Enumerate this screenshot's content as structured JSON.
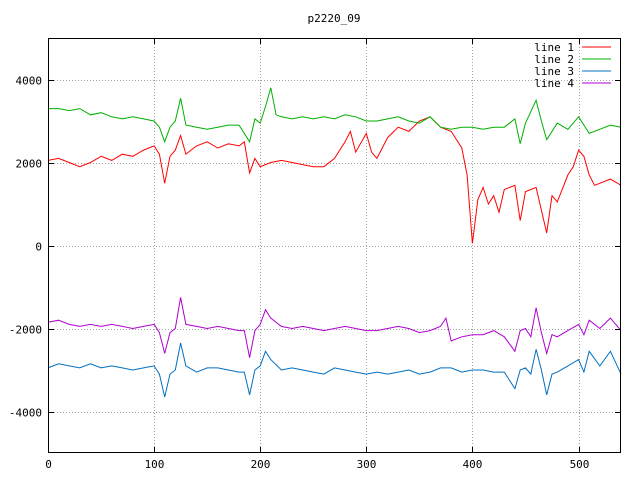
{
  "chart_data": {
    "type": "line",
    "title": "p2220_09",
    "xlabel": "",
    "ylabel": "",
    "xlim": [
      0,
      540
    ],
    "ylim": [
      -5000,
      5000
    ],
    "grid": true,
    "legend_position": "top-right",
    "x_ticks": [
      0,
      100,
      200,
      300,
      400,
      500
    ],
    "y_ticks": [
      -4000,
      -2000,
      0,
      2000,
      4000
    ],
    "x_tick_labels": [
      "0",
      "100",
      "200",
      "300",
      "400",
      "500"
    ],
    "y_tick_labels": [
      "-4000",
      "-2000",
      "0",
      "2000",
      "4000"
    ],
    "series": [
      {
        "name": "line 1",
        "color": "#ff0000",
        "points": [
          [
            0,
            2050
          ],
          [
            10,
            2100
          ],
          [
            20,
            2000
          ],
          [
            30,
            1900
          ],
          [
            40,
            2000
          ],
          [
            50,
            2150
          ],
          [
            60,
            2050
          ],
          [
            70,
            2200
          ],
          [
            80,
            2150
          ],
          [
            90,
            2300
          ],
          [
            100,
            2400
          ],
          [
            105,
            2200
          ],
          [
            110,
            1500
          ],
          [
            115,
            2150
          ],
          [
            120,
            2300
          ],
          [
            125,
            2650
          ],
          [
            130,
            2200
          ],
          [
            140,
            2400
          ],
          [
            150,
            2500
          ],
          [
            160,
            2350
          ],
          [
            170,
            2450
          ],
          [
            180,
            2400
          ],
          [
            185,
            2500
          ],
          [
            190,
            1750
          ],
          [
            195,
            2100
          ],
          [
            200,
            1900
          ],
          [
            210,
            2000
          ],
          [
            220,
            2050
          ],
          [
            230,
            2000
          ],
          [
            240,
            1950
          ],
          [
            250,
            1900
          ],
          [
            260,
            1900
          ],
          [
            270,
            2100
          ],
          [
            280,
            2500
          ],
          [
            285,
            2750
          ],
          [
            290,
            2250
          ],
          [
            300,
            2700
          ],
          [
            305,
            2250
          ],
          [
            310,
            2100
          ],
          [
            320,
            2600
          ],
          [
            330,
            2850
          ],
          [
            340,
            2750
          ],
          [
            350,
            3000
          ],
          [
            360,
            3100
          ],
          [
            370,
            2850
          ],
          [
            380,
            2750
          ],
          [
            390,
            2350
          ],
          [
            395,
            1700
          ],
          [
            400,
            50
          ],
          [
            405,
            1100
          ],
          [
            410,
            1400
          ],
          [
            415,
            1000
          ],
          [
            420,
            1200
          ],
          [
            425,
            800
          ],
          [
            430,
            1350
          ],
          [
            440,
            1450
          ],
          [
            445,
            600
          ],
          [
            450,
            1300
          ],
          [
            460,
            1400
          ],
          [
            470,
            300
          ],
          [
            475,
            1200
          ],
          [
            480,
            1050
          ],
          [
            490,
            1700
          ],
          [
            495,
            1900
          ],
          [
            500,
            2300
          ],
          [
            505,
            2150
          ],
          [
            510,
            1700
          ],
          [
            515,
            1450
          ],
          [
            520,
            1500
          ],
          [
            530,
            1600
          ],
          [
            540,
            1450
          ]
        ]
      },
      {
        "name": "line 2",
        "color": "#00b000",
        "points": [
          [
            0,
            3300
          ],
          [
            10,
            3300
          ],
          [
            20,
            3250
          ],
          [
            30,
            3300
          ],
          [
            40,
            3150
          ],
          [
            50,
            3200
          ],
          [
            60,
            3100
          ],
          [
            70,
            3050
          ],
          [
            80,
            3100
          ],
          [
            90,
            3050
          ],
          [
            100,
            3000
          ],
          [
            105,
            2850
          ],
          [
            110,
            2500
          ],
          [
            115,
            2850
          ],
          [
            120,
            3000
          ],
          [
            125,
            3550
          ],
          [
            130,
            2900
          ],
          [
            140,
            2850
          ],
          [
            150,
            2800
          ],
          [
            160,
            2850
          ],
          [
            170,
            2900
          ],
          [
            180,
            2900
          ],
          [
            190,
            2500
          ],
          [
            195,
            3050
          ],
          [
            200,
            2950
          ],
          [
            205,
            3350
          ],
          [
            210,
            3800
          ],
          [
            215,
            3150
          ],
          [
            220,
            3100
          ],
          [
            230,
            3050
          ],
          [
            240,
            3100
          ],
          [
            250,
            3050
          ],
          [
            260,
            3100
          ],
          [
            270,
            3050
          ],
          [
            280,
            3150
          ],
          [
            290,
            3100
          ],
          [
            300,
            3000
          ],
          [
            310,
            3000
          ],
          [
            320,
            3050
          ],
          [
            330,
            3100
          ],
          [
            340,
            3000
          ],
          [
            350,
            2950
          ],
          [
            360,
            3100
          ],
          [
            370,
            2850
          ],
          [
            380,
            2800
          ],
          [
            390,
            2850
          ],
          [
            400,
            2850
          ],
          [
            410,
            2800
          ],
          [
            420,
            2850
          ],
          [
            430,
            2850
          ],
          [
            440,
            3050
          ],
          [
            445,
            2450
          ],
          [
            450,
            2950
          ],
          [
            460,
            3500
          ],
          [
            465,
            3000
          ],
          [
            470,
            2550
          ],
          [
            480,
            2950
          ],
          [
            490,
            2800
          ],
          [
            500,
            3100
          ],
          [
            510,
            2700
          ],
          [
            520,
            2800
          ],
          [
            530,
            2900
          ],
          [
            540,
            2850
          ]
        ]
      },
      {
        "name": "line 3",
        "color": "#0070c0",
        "points": [
          [
            0,
            -2950
          ],
          [
            10,
            -2850
          ],
          [
            20,
            -2900
          ],
          [
            30,
            -2950
          ],
          [
            40,
            -2850
          ],
          [
            50,
            -2950
          ],
          [
            60,
            -2900
          ],
          [
            70,
            -2950
          ],
          [
            80,
            -3000
          ],
          [
            90,
            -2950
          ],
          [
            100,
            -2900
          ],
          [
            105,
            -3100
          ],
          [
            110,
            -3650
          ],
          [
            115,
            -3100
          ],
          [
            120,
            -3000
          ],
          [
            125,
            -2350
          ],
          [
            130,
            -2900
          ],
          [
            140,
            -3050
          ],
          [
            150,
            -2950
          ],
          [
            160,
            -2950
          ],
          [
            170,
            -3000
          ],
          [
            180,
            -3050
          ],
          [
            185,
            -3050
          ],
          [
            190,
            -3600
          ],
          [
            195,
            -3000
          ],
          [
            200,
            -2900
          ],
          [
            205,
            -2550
          ],
          [
            210,
            -2750
          ],
          [
            220,
            -3000
          ],
          [
            230,
            -2950
          ],
          [
            240,
            -3000
          ],
          [
            250,
            -3050
          ],
          [
            260,
            -3100
          ],
          [
            270,
            -2950
          ],
          [
            280,
            -3000
          ],
          [
            290,
            -3050
          ],
          [
            300,
            -3100
          ],
          [
            310,
            -3050
          ],
          [
            320,
            -3100
          ],
          [
            330,
            -3050
          ],
          [
            340,
            -3000
          ],
          [
            350,
            -3100
          ],
          [
            360,
            -3050
          ],
          [
            370,
            -2950
          ],
          [
            380,
            -2950
          ],
          [
            390,
            -3050
          ],
          [
            400,
            -3000
          ],
          [
            410,
            -3000
          ],
          [
            420,
            -3050
          ],
          [
            430,
            -3050
          ],
          [
            440,
            -3450
          ],
          [
            445,
            -3000
          ],
          [
            450,
            -2950
          ],
          [
            455,
            -3100
          ],
          [
            460,
            -2500
          ],
          [
            465,
            -3000
          ],
          [
            470,
            -3600
          ],
          [
            475,
            -3100
          ],
          [
            480,
            -3050
          ],
          [
            490,
            -2900
          ],
          [
            500,
            -2750
          ],
          [
            505,
            -3050
          ],
          [
            510,
            -2550
          ],
          [
            520,
            -2900
          ],
          [
            530,
            -2550
          ],
          [
            540,
            -3100
          ]
        ]
      },
      {
        "name": "line 4",
        "color": "#b000d0",
        "points": [
          [
            0,
            -1850
          ],
          [
            10,
            -1800
          ],
          [
            20,
            -1900
          ],
          [
            30,
            -1950
          ],
          [
            40,
            -1900
          ],
          [
            50,
            -1950
          ],
          [
            60,
            -1900
          ],
          [
            70,
            -1950
          ],
          [
            80,
            -2000
          ],
          [
            90,
            -1950
          ],
          [
            100,
            -1900
          ],
          [
            105,
            -2100
          ],
          [
            110,
            -2600
          ],
          [
            115,
            -2100
          ],
          [
            120,
            -2000
          ],
          [
            125,
            -1250
          ],
          [
            130,
            -1900
          ],
          [
            140,
            -1950
          ],
          [
            150,
            -2000
          ],
          [
            160,
            -1950
          ],
          [
            170,
            -2000
          ],
          [
            180,
            -2050
          ],
          [
            185,
            -2050
          ],
          [
            190,
            -2700
          ],
          [
            195,
            -2050
          ],
          [
            200,
            -1900
          ],
          [
            205,
            -1550
          ],
          [
            210,
            -1750
          ],
          [
            220,
            -1950
          ],
          [
            230,
            -2000
          ],
          [
            240,
            -1950
          ],
          [
            250,
            -2000
          ],
          [
            260,
            -2050
          ],
          [
            270,
            -2000
          ],
          [
            280,
            -1950
          ],
          [
            290,
            -2000
          ],
          [
            300,
            -2050
          ],
          [
            310,
            -2050
          ],
          [
            320,
            -2000
          ],
          [
            330,
            -1950
          ],
          [
            340,
            -2000
          ],
          [
            350,
            -2100
          ],
          [
            360,
            -2050
          ],
          [
            370,
            -1950
          ],
          [
            375,
            -1750
          ],
          [
            380,
            -2300
          ],
          [
            390,
            -2200
          ],
          [
            400,
            -2150
          ],
          [
            410,
            -2150
          ],
          [
            420,
            -2050
          ],
          [
            430,
            -2200
          ],
          [
            440,
            -2550
          ],
          [
            445,
            -2050
          ],
          [
            450,
            -2000
          ],
          [
            455,
            -2200
          ],
          [
            460,
            -1500
          ],
          [
            465,
            -2100
          ],
          [
            470,
            -2600
          ],
          [
            475,
            -2150
          ],
          [
            480,
            -2200
          ],
          [
            490,
            -2050
          ],
          [
            500,
            -1900
          ],
          [
            505,
            -2150
          ],
          [
            510,
            -1800
          ],
          [
            520,
            -2000
          ],
          [
            530,
            -1750
          ],
          [
            540,
            -2050
          ]
        ]
      }
    ]
  }
}
